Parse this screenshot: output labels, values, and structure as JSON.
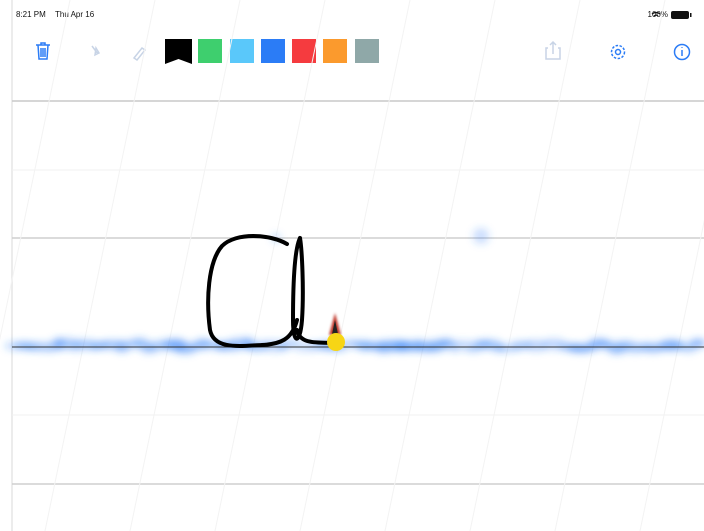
{
  "status_bar": {
    "time": "8:21 PM",
    "date": "Thu Apr 16",
    "battery": "100%"
  },
  "toolbar": {
    "palette": [
      "#000000",
      "#3ecf6e",
      "#5ac8fa",
      "#2b7cf6",
      "#f53b3f",
      "#fb9a2d",
      "#8fa8a8"
    ],
    "selected": 0
  }
}
